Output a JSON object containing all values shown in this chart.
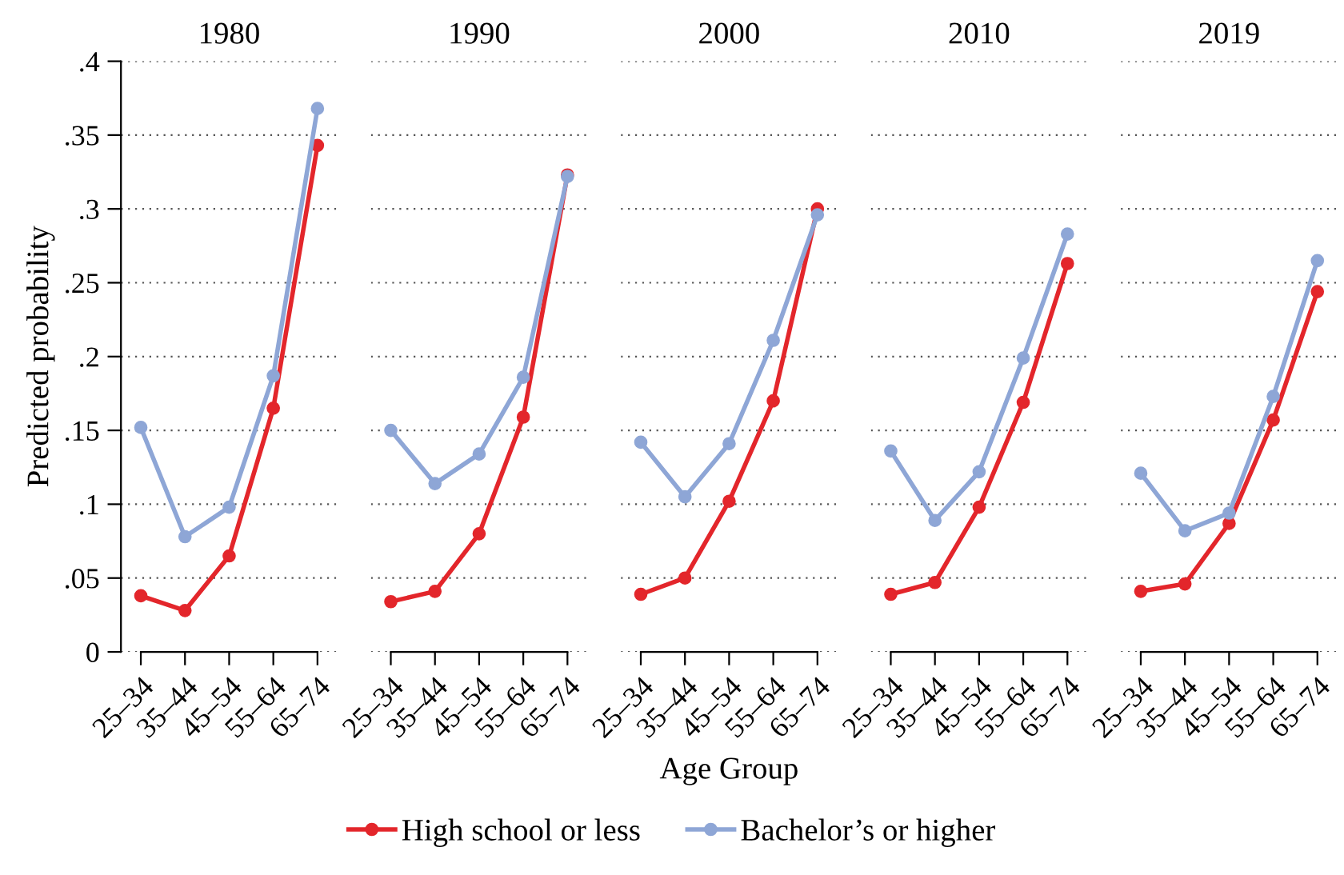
{
  "chart_data": [
    {
      "type": "line",
      "title": "1980",
      "ylabel": "Predicted probability",
      "categories": [
        "25–34",
        "35–44",
        "45–54",
        "55–64",
        "65–74"
      ],
      "ylim": [
        0,
        0.4
      ],
      "yticks": [
        0,
        {
          "value": 0.05,
          "label": ".05"
        },
        {
          "value": 0.1,
          "label": ".1"
        },
        {
          "value": 0.15,
          "label": ".15"
        },
        {
          "value": 0.2,
          "label": ".2"
        },
        {
          "value": 0.25,
          "label": ".25"
        },
        {
          "value": 0.3,
          "label": ".3"
        },
        {
          "value": 0.35,
          "label": ".35"
        },
        {
          "value": 0.4,
          "label": ".4"
        }
      ],
      "grid": "y",
      "marker": "circle",
      "line_style": "solid",
      "legend": "bottom",
      "series": [
        {
          "name": "High school or less",
          "color": "#e3262b",
          "values": [
            0.038,
            0.028,
            0.065,
            0.165,
            0.343
          ]
        },
        {
          "name": "Bachelor’s or higher",
          "color": "#8ea6d6",
          "values": [
            0.152,
            0.078,
            0.098,
            0.187,
            0.368
          ]
        }
      ]
    },
    {
      "type": "line",
      "title": "1990",
      "categories": [
        "25–34",
        "35–44",
        "45–54",
        "55–64",
        "65–74"
      ],
      "ylim": [
        0,
        0.4
      ],
      "yticks": [
        0,
        0.05,
        0.1,
        0.15,
        0.2,
        0.25,
        0.3,
        0.35,
        0.4
      ],
      "grid": "y",
      "marker": "circle",
      "line_style": "solid",
      "tick_labels": "x",
      "series": [
        {
          "color": "#e3262b",
          "values": [
            0.034,
            0.041,
            0.08,
            0.159,
            0.323
          ]
        },
        {
          "color": "#8ea6d6",
          "values": [
            0.15,
            0.114,
            0.134,
            0.186,
            0.322
          ]
        }
      ]
    },
    {
      "type": "line",
      "title": "2000",
      "xlabel": "Age Group",
      "categories": [
        "25–34",
        "35–44",
        "45–54",
        "55–64",
        "65–74"
      ],
      "ylim": [
        0,
        0.4
      ],
      "yticks": [
        0,
        0.05,
        0.1,
        0.15,
        0.2,
        0.25,
        0.3,
        0.35,
        0.4
      ],
      "grid": "y",
      "marker": "circle",
      "line_style": "solid",
      "tick_labels": "x",
      "series": [
        {
          "color": "#e3262b",
          "values": [
            0.039,
            0.05,
            0.102,
            0.17,
            0.3
          ]
        },
        {
          "color": "#8ea6d6",
          "values": [
            0.142,
            0.105,
            0.141,
            0.211,
            0.296
          ]
        }
      ]
    },
    {
      "type": "line",
      "title": "2010",
      "categories": [
        "25–34",
        "35–44",
        "45–54",
        "55–64",
        "65–74"
      ],
      "ylim": [
        0,
        0.4
      ],
      "yticks": [
        0,
        0.05,
        0.1,
        0.15,
        0.2,
        0.25,
        0.3,
        0.35,
        0.4
      ],
      "grid": "y",
      "marker": "circle",
      "line_style": "solid",
      "tick_labels": "x",
      "series": [
        {
          "color": "#e3262b",
          "values": [
            0.039,
            0.047,
            0.098,
            0.169,
            0.263
          ]
        },
        {
          "color": "#8ea6d6",
          "values": [
            0.136,
            0.089,
            0.122,
            0.199,
            0.283
          ]
        }
      ]
    },
    {
      "type": "line",
      "title": "2019",
      "categories": [
        "25–34",
        "35–44",
        "45–54",
        "55–64",
        "65–74"
      ],
      "ylim": [
        0,
        0.4
      ],
      "yticks": [
        0,
        0.05,
        0.1,
        0.15,
        0.2,
        0.25,
        0.3,
        0.35,
        0.4
      ],
      "grid": "y",
      "marker": "circle",
      "line_style": "solid",
      "tick_labels": "x",
      "series": [
        {
          "color": "#e3262b",
          "values": [
            0.041,
            0.046,
            0.087,
            0.157,
            0.244
          ]
        },
        {
          "color": "#8ea6d6",
          "values": [
            0.121,
            0.082,
            0.094,
            0.173,
            0.265
          ]
        }
      ]
    }
  ]
}
